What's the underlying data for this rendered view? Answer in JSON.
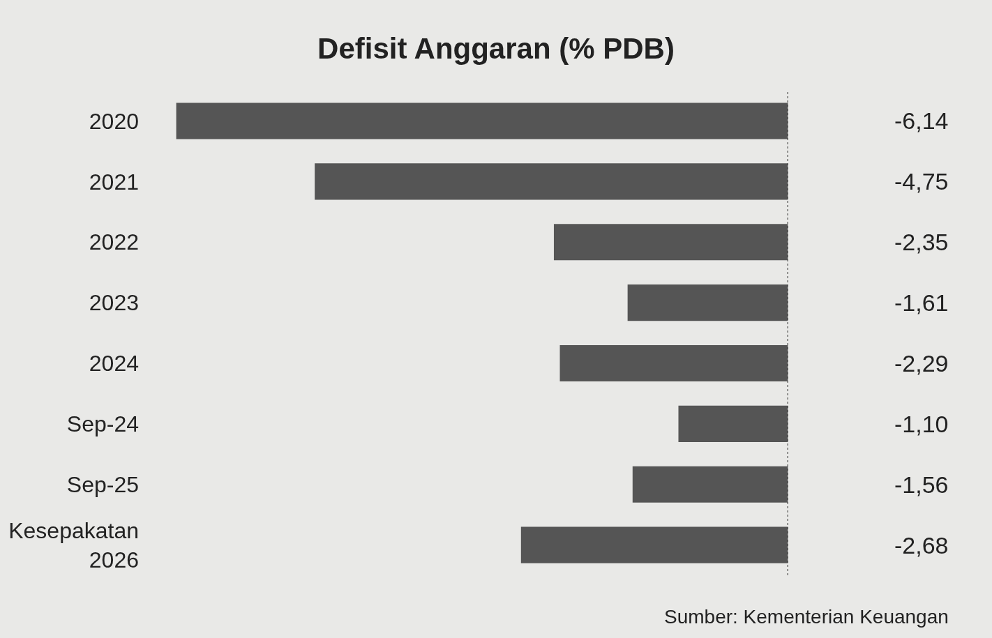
{
  "chart_data": {
    "type": "bar",
    "orientation": "horizontal",
    "title": "Defisit Anggaran (% PDB)",
    "categories": [
      "2020",
      "2021",
      "2022",
      "2023",
      "2024",
      "Sep-24",
      "Sep-25",
      "Kesepakatan\n2026"
    ],
    "values": [
      -6.14,
      -4.75,
      -2.35,
      -1.61,
      -2.29,
      -1.1,
      -1.56,
      -2.68
    ],
    "value_labels": [
      "-6,14",
      "-4,75",
      "-2,35",
      "-1,61",
      "-2,29",
      "-1,10",
      "-1,56",
      "-2,68"
    ],
    "color": "#555555",
    "ref_lines": [
      {
        "axis": "x",
        "value": 0,
        "color": "#333333",
        "line_style": "dotted"
      }
    ],
    "annotations": [
      "Sumber: Kementerian Keuangan"
    ],
    "grid": false,
    "tick_labels": "y"
  }
}
